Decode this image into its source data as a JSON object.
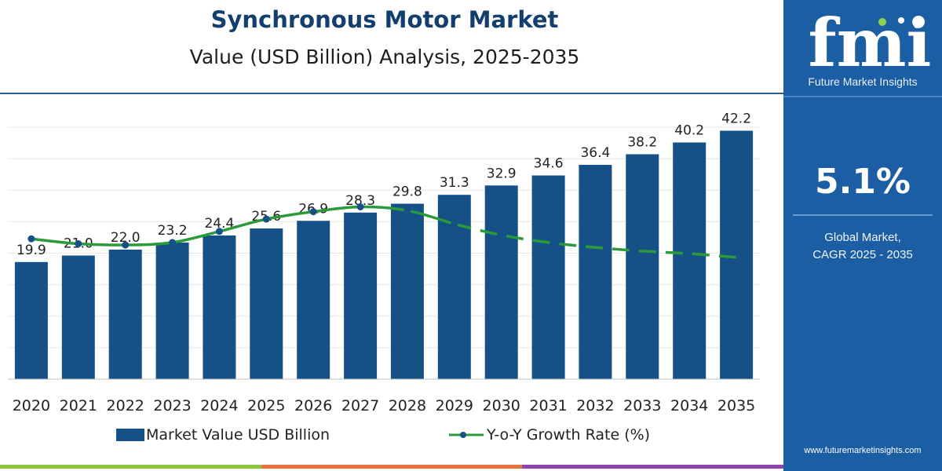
{
  "title": "Synchronous Motor Market",
  "subtitle": "Value (USD Billion) Analysis, 2025-2035",
  "colors": {
    "bar": "#155086",
    "line": "#2a9a3a",
    "title": "#123f6e",
    "panel": "#1c5ea4"
  },
  "chart_data": {
    "type": "bar",
    "categories": [
      "2020",
      "2021",
      "2022",
      "2023",
      "2024",
      "2025",
      "2026",
      "2027",
      "2028",
      "2029",
      "2030",
      "2031",
      "2032",
      "2033",
      "2034",
      "2035"
    ],
    "series": [
      {
        "name": "Market Value USD Billion",
        "type": "bar",
        "values": [
          19.9,
          21.0,
          22.0,
          23.2,
          24.4,
          25.6,
          26.9,
          28.3,
          29.8,
          31.3,
          32.9,
          34.6,
          36.4,
          38.2,
          40.2,
          42.2
        ]
      },
      {
        "name": "Y-o-Y Growth Rate (%)",
        "type": "line",
        "values": [
          5.7,
          5.5,
          5.45,
          5.55,
          6.0,
          6.5,
          6.8,
          7.0,
          6.85,
          6.3,
          5.85,
          5.55,
          5.35,
          5.2,
          5.1,
          4.95
        ],
        "dashed_from_index": 9
      }
    ],
    "ylim": [
      0,
      46
    ],
    "line_ylim": [
      0,
      11
    ],
    "grid": true,
    "legend": "bottom"
  },
  "legend": {
    "bar_label": "Market Value USD Billion",
    "line_label": "Y-o-Y Growth Rate (%)"
  },
  "sidebar": {
    "logo_text": "fmi",
    "brand": "Future Market Insights",
    "cagr_value": "5.1%",
    "cagr_label_1": "Global Market,",
    "cagr_label_2": "CAGR 2025 - 2035",
    "website": "www.futuremarketinsights.com"
  },
  "footer_colors": [
    "#8cc63f",
    "#e8743b",
    "#8e44ad"
  ]
}
